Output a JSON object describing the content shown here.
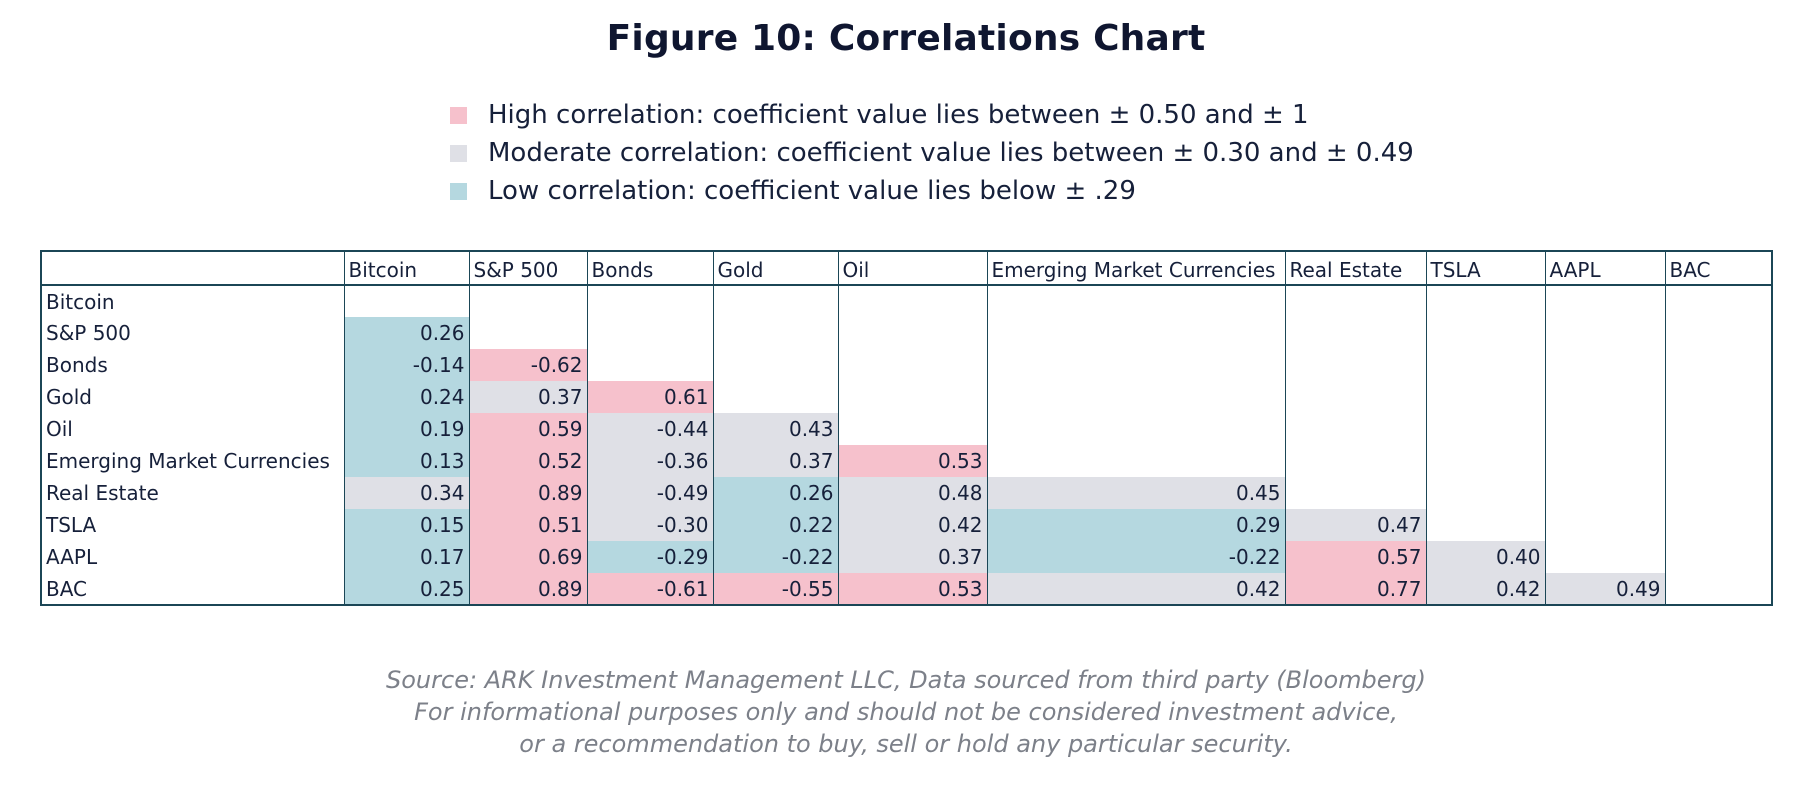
{
  "title": "Figure 10: Correlations Chart",
  "legend": [
    {
      "label": "High correlation: coefficient value lies between ± 0.50 and ± 1",
      "color": "#f6c1cc"
    },
    {
      "label": "Moderate correlation: coefficient value lies between ± 0.30 and ± 0.49",
      "color": "#dfe0e6"
    },
    {
      "label": "Low correlation: coefficient value lies below ± .29",
      "color": "#b5d8e0"
    }
  ],
  "colors": {
    "high": "#f6c1cc",
    "moderate": "#dfe0e6",
    "low": "#b5d8e0"
  },
  "chart_data": {
    "type": "table",
    "title": "Figure 10: Correlations Chart",
    "columns": [
      "Bitcoin",
      "S&P 500",
      "Bonds",
      "Gold",
      "Oil",
      "Emerging Market Currencies",
      "Real Estate",
      "TSLA",
      "AAPL",
      "BAC"
    ],
    "rows": [
      {
        "label": "Bitcoin",
        "values": []
      },
      {
        "label": "S&P 500",
        "values": [
          "0.26"
        ]
      },
      {
        "label": "Bonds",
        "values": [
          "-0.14",
          "-0.62"
        ]
      },
      {
        "label": "Gold",
        "values": [
          "0.24",
          "0.37",
          "0.61"
        ]
      },
      {
        "label": "Oil",
        "values": [
          "0.19",
          "0.59",
          "-0.44",
          "0.43"
        ]
      },
      {
        "label": "Emerging Market Currencies",
        "values": [
          "0.13",
          "0.52",
          "-0.36",
          "0.37",
          "0.53"
        ]
      },
      {
        "label": "Real Estate",
        "values": [
          "0.34",
          "0.89",
          "-0.49",
          "0.26",
          "0.48",
          "0.45"
        ]
      },
      {
        "label": "TSLA",
        "values": [
          "0.15",
          "0.51",
          "-0.30",
          "0.22",
          "0.42",
          "0.29",
          "0.47"
        ]
      },
      {
        "label": "AAPL",
        "values": [
          "0.17",
          "0.69",
          "-0.29",
          "-0.22",
          "0.37",
          "-0.22",
          "0.57",
          "0.40"
        ]
      },
      {
        "label": "BAC",
        "values": [
          "0.25",
          "0.89",
          "-0.61",
          "-0.55",
          "0.53",
          "0.42",
          "0.77",
          "0.42",
          "0.49"
        ]
      }
    ]
  },
  "source_lines": [
    "Source: ARK Investment Management LLC, Data sourced from third party (Bloomberg)",
    "For informational purposes only and should not be considered investment advice,",
    "or a recommendation to buy, sell or hold any particular security."
  ]
}
